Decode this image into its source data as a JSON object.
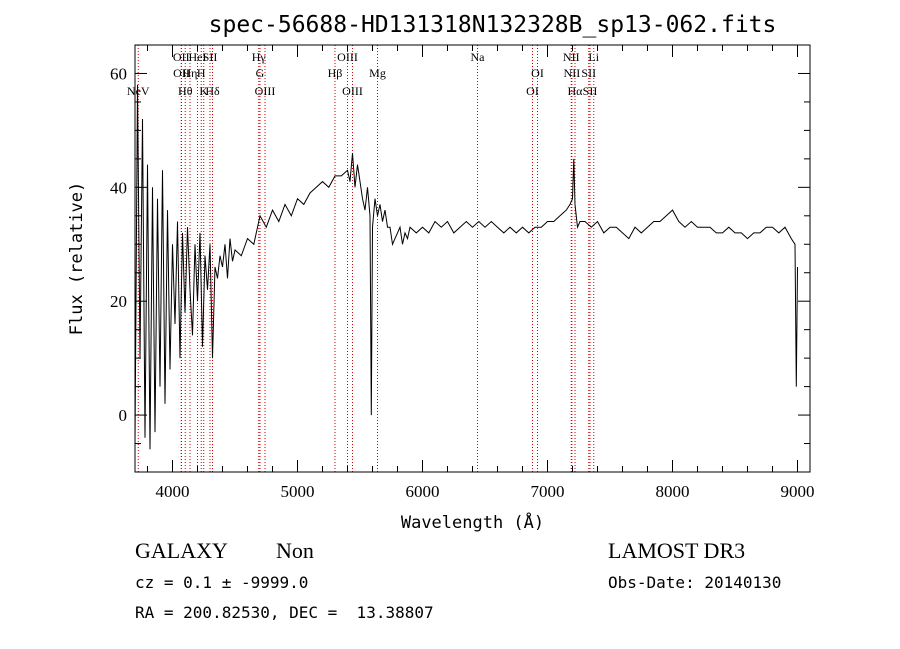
{
  "chart_data": {
    "type": "line",
    "title": "spec-56688-HD131318N132328B_sp13-062.fits",
    "xlabel": "Wavelength (Å)",
    "ylabel": "Flux (relative)",
    "xlim": [
      3700,
      9100
    ],
    "ylim": [
      -10,
      65
    ],
    "xticks": [
      4000,
      5000,
      6000,
      7000,
      8000,
      9000
    ],
    "yticks": [
      0,
      20,
      40,
      60
    ],
    "series": [
      {
        "name": "spectrum",
        "x": [
          3700,
          3720,
          3740,
          3760,
          3780,
          3800,
          3820,
          3840,
          3860,
          3880,
          3900,
          3920,
          3940,
          3960,
          3980,
          4000,
          4020,
          4040,
          4060,
          4080,
          4100,
          4120,
          4140,
          4160,
          4180,
          4200,
          4220,
          4240,
          4260,
          4280,
          4300,
          4320,
          4340,
          4360,
          4380,
          4400,
          4420,
          4440,
          4460,
          4480,
          4500,
          4550,
          4600,
          4650,
          4700,
          4750,
          4800,
          4850,
          4900,
          4950,
          5000,
          5050,
          5100,
          5150,
          5200,
          5250,
          5300,
          5350,
          5400,
          5420,
          5440,
          5460,
          5480,
          5500,
          5520,
          5540,
          5560,
          5580,
          5590,
          5600,
          5620,
          5640,
          5660,
          5680,
          5700,
          5720,
          5740,
          5760,
          5780,
          5800,
          5820,
          5840,
          5860,
          5880,
          5900,
          5950,
          6000,
          6050,
          6100,
          6150,
          6200,
          6250,
          6300,
          6350,
          6400,
          6450,
          6500,
          6550,
          6600,
          6650,
          6700,
          6750,
          6800,
          6850,
          6900,
          6950,
          7000,
          7050,
          7100,
          7150,
          7180,
          7200,
          7210,
          7220,
          7240,
          7260,
          7300,
          7350,
          7400,
          7450,
          7500,
          7550,
          7600,
          7650,
          7700,
          7750,
          7800,
          7850,
          7900,
          7950,
          8000,
          8050,
          8100,
          8150,
          8200,
          8250,
          8300,
          8350,
          8400,
          8450,
          8500,
          8550,
          8600,
          8650,
          8700,
          8750,
          8800,
          8850,
          8900,
          8950,
          8980,
          8990,
          9000
        ],
        "y": [
          -5,
          58,
          10,
          52,
          -4,
          44,
          -6,
          40,
          -3,
          38,
          5,
          43,
          2,
          36,
          8,
          30,
          16,
          34,
          10,
          32,
          18,
          33,
          22,
          14,
          30,
          20,
          32,
          12,
          28,
          22,
          30,
          10,
          26,
          24,
          28,
          26,
          30,
          24,
          31,
          27,
          29,
          28,
          31,
          30,
          35,
          33,
          36,
          34,
          37,
          35,
          38,
          37,
          39,
          40,
          41,
          40,
          42,
          42,
          43,
          41,
          46,
          40,
          44,
          41,
          38,
          36,
          40,
          35,
          0,
          33,
          38,
          35,
          37,
          34,
          36,
          33,
          33,
          30,
          31,
          32,
          33,
          30,
          32,
          31,
          33,
          32,
          33,
          32,
          34,
          33,
          34,
          32,
          33,
          34,
          33,
          34,
          33,
          34,
          33,
          32,
          33,
          32,
          33,
          32,
          33,
          33,
          34,
          34,
          35,
          36,
          37,
          38,
          45,
          37,
          33,
          34,
          34,
          33,
          34,
          32,
          33,
          33,
          32,
          31,
          33,
          32,
          33,
          34,
          34,
          35,
          36,
          34,
          33,
          34,
          33,
          33,
          33,
          32,
          32,
          33,
          32,
          32,
          31,
          32,
          32,
          33,
          33,
          32,
          33,
          31,
          30,
          5,
          26
        ]
      }
    ],
    "lines": [
      {
        "name": "NeV",
        "wl": 3726,
        "row": 3
      },
      {
        "name": "OII",
        "wl": 4070,
        "row": 1
      },
      {
        "name": "OII",
        "wl": 4072,
        "row": 2
      },
      {
        "name": "Hθ",
        "wl": 4102,
        "row": 3
      },
      {
        "name": "Hη",
        "wl": 4140,
        "row": 2
      },
      {
        "name": "HeI",
        "wl": 4200,
        "row": 1
      },
      {
        "name": "H",
        "wl": 4230,
        "row": 2
      },
      {
        "name": "K",
        "wl": 4250,
        "row": 3
      },
      {
        "name": "SII",
        "wl": 4300,
        "row": 1
      },
      {
        "name": "Hδ",
        "wl": 4320,
        "row": 3
      },
      {
        "name": "Hγ",
        "wl": 4690,
        "row": 1
      },
      {
        "name": "G",
        "wl": 4700,
        "row": 2
      },
      {
        "name": "OIII",
        "wl": 4740,
        "row": 3
      },
      {
        "name": "Hβ",
        "wl": 5300,
        "row": 2
      },
      {
        "name": "OIII",
        "wl": 5400,
        "row": 1
      },
      {
        "name": "OIII",
        "wl": 5440,
        "row": 3
      },
      {
        "name": "Mg",
        "wl": 5640,
        "row": 2
      },
      {
        "name": "Na",
        "wl": 6440,
        "row": 1
      },
      {
        "name": "OI",
        "wl": 6920,
        "row": 2
      },
      {
        "name": "OI",
        "wl": 6880,
        "row": 3
      },
      {
        "name": "NII",
        "wl": 7190,
        "row": 1
      },
      {
        "name": "NII",
        "wl": 7195,
        "row": 2
      },
      {
        "name": "Hα",
        "wl": 7220,
        "row": 3
      },
      {
        "name": "SII",
        "wl": 7330,
        "row": 2
      },
      {
        "name": "SII",
        "wl": 7340,
        "row": 3
      },
      {
        "name": "Li",
        "wl": 7370,
        "row": 1
      }
    ]
  },
  "info": {
    "class": "GALAXY",
    "subclass": "Non",
    "survey": "LAMOST DR3",
    "cz": "cz = 0.1 ± -9999.0",
    "obs_date": "Obs-Date: 20140130",
    "coords": "RA = 200.82530, DEC =  13.38807"
  }
}
